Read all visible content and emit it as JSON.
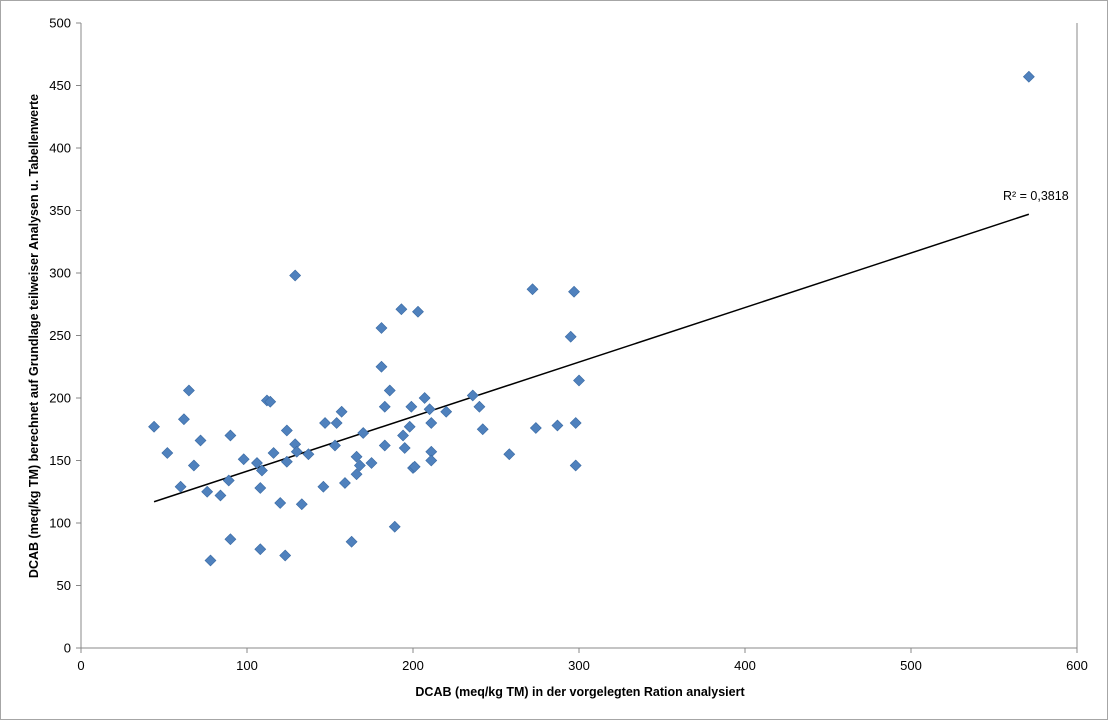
{
  "chart_data": {
    "type": "scatter",
    "xlabel": "DCAB  (meq/kg TM)  in der vorgelegten Ration analysiert",
    "ylabel": "DCAB  (meq/kg TM) berechnet auf Grundlage teilweiser  Analysen  u. Tabellenwerte",
    "xlim": [
      0,
      600
    ],
    "ylim": [
      0,
      500
    ],
    "xticks": [
      0,
      100,
      200,
      300,
      400,
      500,
      600
    ],
    "yticks": [
      0,
      50,
      100,
      150,
      200,
      250,
      300,
      350,
      400,
      450,
      500
    ],
    "grid": false,
    "legend": "none",
    "marker_color": "#4f81bd",
    "trendline": {
      "x": [
        44,
        571
      ],
      "y": [
        117,
        347
      ],
      "color": "#000000"
    },
    "r2_label": "R² = 0,3818",
    "points": [
      {
        "x": 44,
        "y": 177
      },
      {
        "x": 52,
        "y": 156
      },
      {
        "x": 60,
        "y": 129
      },
      {
        "x": 62,
        "y": 183
      },
      {
        "x": 65,
        "y": 206
      },
      {
        "x": 68,
        "y": 146
      },
      {
        "x": 72,
        "y": 166
      },
      {
        "x": 76,
        "y": 125
      },
      {
        "x": 78,
        "y": 70
      },
      {
        "x": 84,
        "y": 122
      },
      {
        "x": 89,
        "y": 134
      },
      {
        "x": 90,
        "y": 170
      },
      {
        "x": 90,
        "y": 87
      },
      {
        "x": 98,
        "y": 151
      },
      {
        "x": 106,
        "y": 148
      },
      {
        "x": 108,
        "y": 79
      },
      {
        "x": 108,
        "y": 128
      },
      {
        "x": 109,
        "y": 142
      },
      {
        "x": 112,
        "y": 198
      },
      {
        "x": 114,
        "y": 197
      },
      {
        "x": 116,
        "y": 156
      },
      {
        "x": 120,
        "y": 116
      },
      {
        "x": 123,
        "y": 74
      },
      {
        "x": 124,
        "y": 149
      },
      {
        "x": 124,
        "y": 174
      },
      {
        "x": 129,
        "y": 163
      },
      {
        "x": 129,
        "y": 298
      },
      {
        "x": 130,
        "y": 157
      },
      {
        "x": 133,
        "y": 115
      },
      {
        "x": 137,
        "y": 155
      },
      {
        "x": 146,
        "y": 129
      },
      {
        "x": 147,
        "y": 180
      },
      {
        "x": 153,
        "y": 162
      },
      {
        "x": 154,
        "y": 180
      },
      {
        "x": 157,
        "y": 189
      },
      {
        "x": 159,
        "y": 132
      },
      {
        "x": 163,
        "y": 85
      },
      {
        "x": 166,
        "y": 139
      },
      {
        "x": 166,
        "y": 153
      },
      {
        "x": 168,
        "y": 146
      },
      {
        "x": 170,
        "y": 172
      },
      {
        "x": 175,
        "y": 148
      },
      {
        "x": 181,
        "y": 256
      },
      {
        "x": 181,
        "y": 225
      },
      {
        "x": 183,
        "y": 162
      },
      {
        "x": 183,
        "y": 193
      },
      {
        "x": 186,
        "y": 206
      },
      {
        "x": 189,
        "y": 97
      },
      {
        "x": 193,
        "y": 271
      },
      {
        "x": 194,
        "y": 170
      },
      {
        "x": 195,
        "y": 160
      },
      {
        "x": 198,
        "y": 177
      },
      {
        "x": 199,
        "y": 193
      },
      {
        "x": 200,
        "y": 144
      },
      {
        "x": 201,
        "y": 145
      },
      {
        "x": 203,
        "y": 269
      },
      {
        "x": 207,
        "y": 200
      },
      {
        "x": 210,
        "y": 191
      },
      {
        "x": 211,
        "y": 157
      },
      {
        "x": 211,
        "y": 180
      },
      {
        "x": 211,
        "y": 150
      },
      {
        "x": 220,
        "y": 189
      },
      {
        "x": 236,
        "y": 202
      },
      {
        "x": 240,
        "y": 193
      },
      {
        "x": 242,
        "y": 175
      },
      {
        "x": 258,
        "y": 155
      },
      {
        "x": 272,
        "y": 287
      },
      {
        "x": 274,
        "y": 176
      },
      {
        "x": 287,
        "y": 178
      },
      {
        "x": 295,
        "y": 249
      },
      {
        "x": 297,
        "y": 285
      },
      {
        "x": 298,
        "y": 180
      },
      {
        "x": 298,
        "y": 146
      },
      {
        "x": 300,
        "y": 214
      },
      {
        "x": 571,
        "y": 457
      }
    ]
  }
}
